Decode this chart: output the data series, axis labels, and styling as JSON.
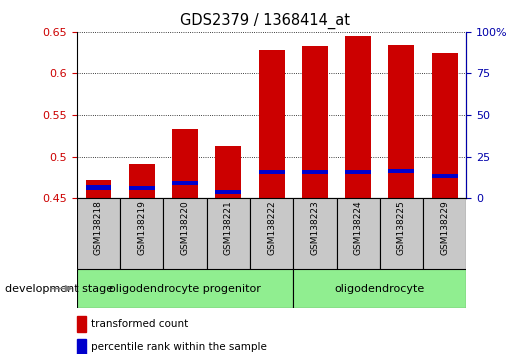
{
  "title": "GDS2379 / 1368414_at",
  "samples": [
    "GSM138218",
    "GSM138219",
    "GSM138220",
    "GSM138221",
    "GSM138222",
    "GSM138223",
    "GSM138224",
    "GSM138225",
    "GSM138229"
  ],
  "red_values": [
    0.472,
    0.491,
    0.533,
    0.513,
    0.628,
    0.633,
    0.645,
    0.634,
    0.624
  ],
  "blue_values": [
    0.463,
    0.462,
    0.468,
    0.458,
    0.482,
    0.482,
    0.482,
    0.483,
    0.477
  ],
  "ylim_left": [
    0.45,
    0.65
  ],
  "ylim_right": [
    0,
    100
  ],
  "yticks_left": [
    0.45,
    0.5,
    0.55,
    0.6,
    0.65
  ],
  "yticks_right": [
    0,
    25,
    50,
    75,
    100
  ],
  "ytick_labels_right": [
    "0",
    "25",
    "50",
    "75",
    "100%"
  ],
  "group1_label": "oligodendrocyte progenitor",
  "group2_label": "oligodendrocyte",
  "group1_indices": [
    0,
    1,
    2,
    3,
    4
  ],
  "group2_indices": [
    5,
    6,
    7,
    8
  ],
  "dev_stage_label": "development stage",
  "legend1_label": "transformed count",
  "legend2_label": "percentile rank within the sample",
  "red_color": "#CC0000",
  "blue_color": "#0000CC",
  "group_color": "#90EE90",
  "sample_box_color": "#C8C8C8",
  "bar_bottom": 0.45,
  "bar_width": 0.6,
  "blue_bar_height": 0.005,
  "tick_color_left": "#CC0000",
  "tick_color_right": "#0000AA",
  "arrow_color": "#808080"
}
